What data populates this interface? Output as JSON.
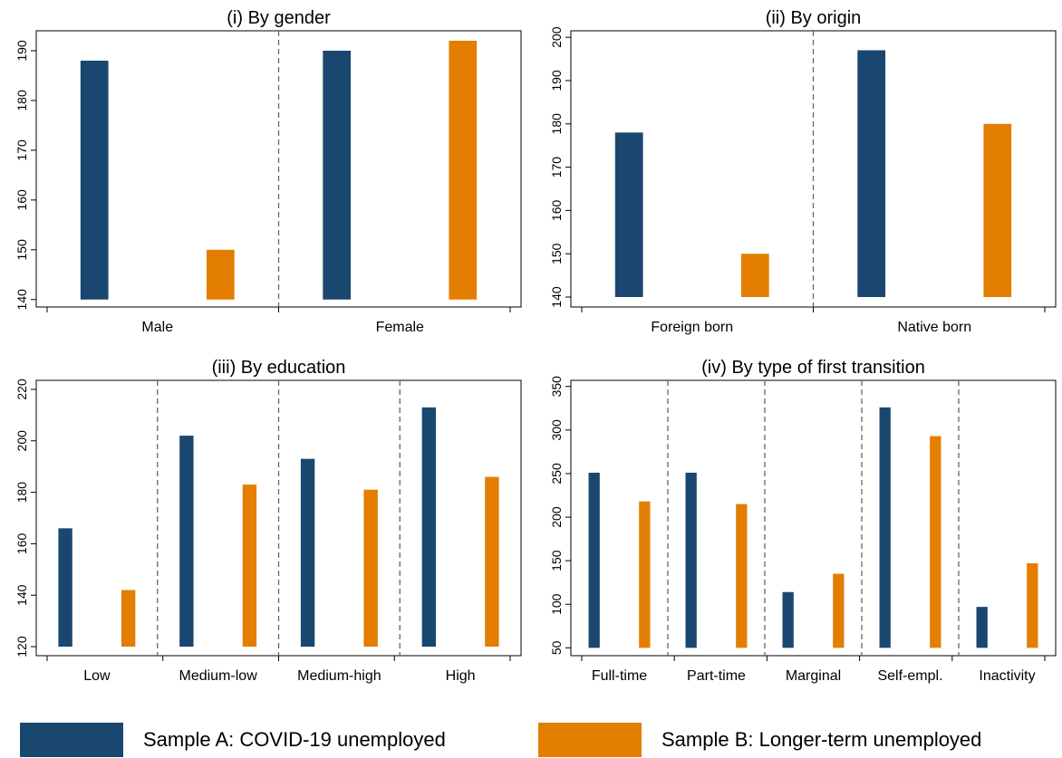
{
  "colors": {
    "series_a": "#1a476f",
    "series_b": "#e37e00"
  },
  "legend": {
    "series_a": "Sample A: COVID-19 unemployed",
    "series_b": "Sample B: Longer-term unemployed"
  },
  "chart_data": [
    {
      "type": "bar",
      "title": "(i) By gender",
      "categories": [
        "Male",
        "Female"
      ],
      "series": [
        {
          "name": "Sample A: COVID-19 unemployed",
          "values": [
            188,
            190
          ]
        },
        {
          "name": "Sample B: Longer-term unemployed",
          "values": [
            150,
            192
          ]
        }
      ],
      "ylim": [
        138.5,
        194
      ],
      "yticks": [
        140,
        150,
        160,
        170,
        180,
        190
      ],
      "base": 140,
      "grid": false,
      "legend": "bottom"
    },
    {
      "type": "bar",
      "title": "(ii) By origin",
      "categories": [
        "Foreign born",
        "Native born"
      ],
      "series": [
        {
          "name": "Sample A: COVID-19 unemployed",
          "values": [
            178,
            197
          ]
        },
        {
          "name": "Sample B: Longer-term unemployed",
          "values": [
            150,
            180
          ]
        }
      ],
      "ylim": [
        137.7,
        201.5
      ],
      "yticks": [
        140,
        150,
        160,
        170,
        180,
        190,
        200
      ],
      "base": 140,
      "grid": false,
      "legend": "bottom"
    },
    {
      "type": "bar",
      "title": "(iii) By education",
      "categories": [
        "Low",
        "Medium-low",
        "Medium-high",
        "High"
      ],
      "series": [
        {
          "name": "Sample A: COVID-19 unemployed",
          "values": [
            166,
            202,
            193,
            213
          ]
        },
        {
          "name": "Sample B: Longer-term unemployed",
          "values": [
            142,
            183,
            181,
            186
          ]
        }
      ],
      "ylim": [
        116.5,
        223.5
      ],
      "yticks": [
        120,
        140,
        160,
        180,
        200,
        220
      ],
      "base": 120,
      "grid": false,
      "legend": "bottom"
    },
    {
      "type": "bar",
      "title": "(iv) By type of first transition",
      "categories": [
        "Full-time",
        "Part-time",
        "Marginal",
        "Self-empl.",
        "Inactivity"
      ],
      "series": [
        {
          "name": "Sample A: COVID-19 unemployed",
          "values": [
            251,
            251,
            114,
            326,
            97
          ]
        },
        {
          "name": "Sample B: Longer-term unemployed",
          "values": [
            218,
            215,
            135,
            293,
            147
          ]
        }
      ],
      "ylim": [
        41,
        357
      ],
      "yticks": [
        50,
        100,
        150,
        200,
        250,
        300,
        350
      ],
      "base": 50,
      "grid": false,
      "legend": "bottom"
    }
  ]
}
